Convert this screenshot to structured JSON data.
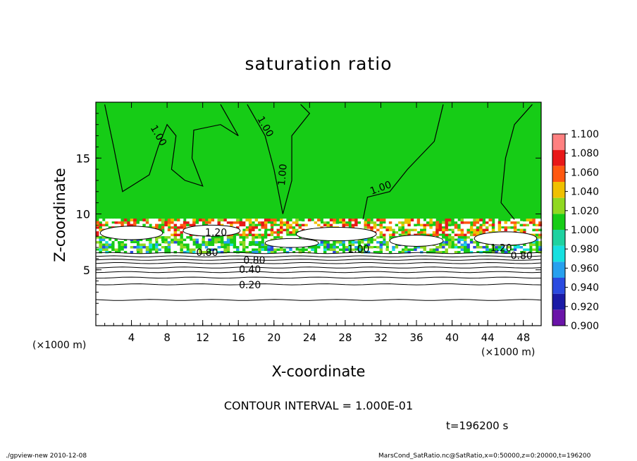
{
  "chart_data": {
    "type": "heatmap",
    "title": "saturation ratio",
    "xlabel": "X-coordinate",
    "ylabel": "Z-coordinate",
    "x_unit_left": "(×1000 m)",
    "x_unit_right": "(×1000 m)",
    "xlim": [
      0,
      50
    ],
    "ylim": [
      0,
      20
    ],
    "x_ticks": [
      4,
      8,
      12,
      16,
      20,
      24,
      28,
      32,
      36,
      40,
      44,
      48
    ],
    "y_ticks": [
      5,
      10,
      15
    ],
    "contour_interval_text": "CONTOUR INTERVAL = 1.000E-01",
    "time_text": "t=196200 s",
    "colorbar": {
      "levels": [
        "0.900",
        "0.920",
        "0.940",
        "0.960",
        "0.980",
        "1.000",
        "1.020",
        "1.040",
        "1.060",
        "1.080",
        "1.100"
      ],
      "colors": [
        "#6a14a8",
        "#1a1aa6",
        "#2a4ae0",
        "#27a0ee",
        "#16e0e0",
        "#1ed2a0",
        "#16cc16",
        "#90d820",
        "#f0c000",
        "#ff5810",
        "#e81818",
        "#ff8080"
      ]
    },
    "field": {
      "background_value": 1.0,
      "background_color": "#16cc16",
      "lower_layer_top_z": 6.5,
      "lower_layer_color": "#ffffff"
    },
    "contour_labels": [
      {
        "text": "1.00",
        "x": 7,
        "z": 17,
        "angle": 60
      },
      {
        "text": "1.00",
        "x": 19,
        "z": 17.8,
        "angle": 60
      },
      {
        "text": "1.00",
        "x": 21,
        "z": 13.5,
        "angle": -85
      },
      {
        "text": "1.00",
        "x": 32,
        "z": 12.3,
        "angle": -20
      },
      {
        "text": "1.20",
        "x": 13.5,
        "z": 8.3,
        "angle": 0
      },
      {
        "text": "1.00",
        "x": 29.5,
        "z": 6.8,
        "angle": 0
      },
      {
        "text": "1.20",
        "x": 45.5,
        "z": 6.9,
        "angle": 0
      },
      {
        "text": "0.80",
        "x": 12.5,
        "z": 6.5,
        "angle": 0
      },
      {
        "text": "0.80",
        "x": 17.8,
        "z": 5.8,
        "angle": 0
      },
      {
        "text": "0.40",
        "x": 17.3,
        "z": 5.0,
        "angle": 0
      },
      {
        "text": "0.20",
        "x": 17.3,
        "z": 3.6,
        "angle": 0
      },
      {
        "text": "0.80",
        "x": 47.8,
        "z": 6.2,
        "angle": 0
      }
    ],
    "horizontal_contours_z": [
      2.3,
      3.7,
      4.3,
      4.8,
      5.2,
      5.6,
      5.9,
      6.2,
      6.5
    ],
    "footer_left": "./gpview-new  2010-12-08",
    "footer_right": "MarsCond_SatRatio.nc@SatRatio,x=0:50000,z=0:20000,t=196200"
  }
}
